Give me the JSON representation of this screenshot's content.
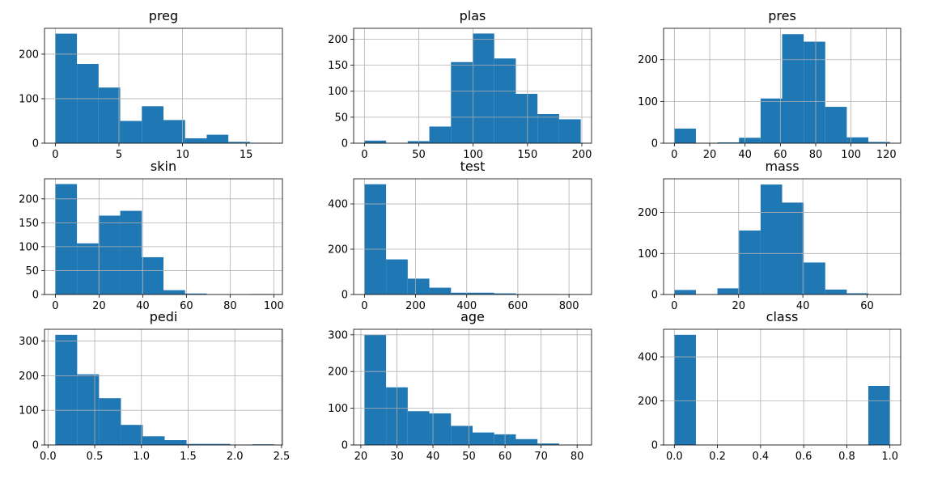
{
  "figure": {
    "facecolor": "#ffffff",
    "bar_color": "#1f77b4",
    "grid_color": "#b0b0b0",
    "grid": true
  },
  "chart_data": [
    {
      "type": "bar",
      "title": "preg",
      "xlim": [
        -0.85,
        17.85
      ],
      "ylim": [
        0,
        258
      ],
      "bin_edges": [
        0,
        1.7,
        3.4,
        5.1,
        6.8,
        8.5,
        10.2,
        11.9,
        13.6,
        15.3,
        17
      ],
      "values": [
        246,
        178,
        125,
        50,
        83,
        52,
        11,
        19,
        3,
        1
      ],
      "xticks": [
        0,
        5,
        10,
        15
      ],
      "xtick_labels": [
        "0",
        "5",
        "10",
        "15"
      ],
      "yticks": [
        0,
        100,
        200
      ],
      "ytick_labels": [
        "0",
        "100",
        "200"
      ]
    },
    {
      "type": "bar",
      "title": "plas",
      "xlim": [
        -9.95,
        208.95
      ],
      "ylim": [
        0,
        221
      ],
      "bin_edges": [
        0,
        19.9,
        39.8,
        59.7,
        79.6,
        99.5,
        119.4,
        139.3,
        159.2,
        179.1,
        199
      ],
      "values": [
        5,
        0,
        4,
        32,
        156,
        211,
        163,
        95,
        56,
        46
      ],
      "xticks": [
        0,
        50,
        100,
        150,
        200
      ],
      "xtick_labels": [
        "0",
        "50",
        "100",
        "150",
        "200"
      ],
      "yticks": [
        0,
        50,
        100,
        150,
        200
      ],
      "ytick_labels": [
        "0",
        "50",
        "100",
        "150",
        "200"
      ]
    },
    {
      "type": "bar",
      "title": "pres",
      "xlim": [
        -6.1,
        128.1
      ],
      "ylim": [
        0,
        275
      ],
      "bin_edges": [
        0,
        12.2,
        24.4,
        36.6,
        48.8,
        61,
        73.2,
        85.4,
        97.6,
        109.8,
        122
      ],
      "values": [
        35,
        1,
        2,
        13,
        107,
        261,
        243,
        87,
        14,
        3
      ],
      "xticks": [
        0,
        20,
        40,
        60,
        80,
        100,
        120
      ],
      "xtick_labels": [
        "0",
        "20",
        "40",
        "60",
        "80",
        "100",
        "120"
      ],
      "yticks": [
        0,
        100,
        200
      ],
      "ytick_labels": [
        "0",
        "100",
        "200"
      ]
    },
    {
      "type": "bar",
      "title": "skin",
      "xlim": [
        -4.95,
        103.95
      ],
      "ylim": [
        0,
        242
      ],
      "bin_edges": [
        0,
        9.9,
        19.8,
        29.7,
        39.6,
        49.5,
        59.4,
        69.3,
        79.2,
        89.1,
        99
      ],
      "values": [
        231,
        107,
        165,
        175,
        78,
        9,
        2,
        0,
        0,
        1
      ],
      "xticks": [
        0,
        20,
        40,
        60,
        80,
        100
      ],
      "xtick_labels": [
        "0",
        "20",
        "40",
        "60",
        "80",
        "100"
      ],
      "yticks": [
        0,
        50,
        100,
        150,
        200
      ],
      "ytick_labels": [
        "0",
        "50",
        "100",
        "150",
        "200"
      ]
    },
    {
      "type": "bar",
      "title": "test",
      "xlim": [
        -42.3,
        888.3
      ],
      "ylim": [
        0,
        511
      ],
      "bin_edges": [
        0,
        84.6,
        169.2,
        253.8,
        338.4,
        423,
        507.6,
        592.2,
        676.8,
        761.4,
        846
      ],
      "values": [
        487,
        155,
        70,
        30,
        8,
        8,
        5,
        2,
        2,
        1
      ],
      "xticks": [
        0,
        200,
        400,
        600,
        800
      ],
      "xtick_labels": [
        "0",
        "200",
        "400",
        "600",
        "800"
      ],
      "yticks": [
        0,
        200,
        400
      ],
      "ytick_labels": [
        "0",
        "200",
        "400"
      ]
    },
    {
      "type": "bar",
      "title": "mass",
      "xlim": [
        -3.355,
        70.455
      ],
      "ylim": [
        0,
        282
      ],
      "bin_edges": [
        0,
        6.71,
        13.42,
        20.13,
        26.84,
        33.55,
        40.26,
        46.97,
        53.68,
        60.39,
        67.1
      ],
      "values": [
        11,
        0,
        15,
        156,
        268,
        224,
        78,
        12,
        3,
        1
      ],
      "xticks": [
        0,
        20,
        40,
        60
      ],
      "xtick_labels": [
        "0",
        "20",
        "40",
        "60"
      ],
      "yticks": [
        0,
        100,
        200
      ],
      "ytick_labels": [
        "0",
        "100",
        "200"
      ]
    },
    {
      "type": "bar",
      "title": "pedi",
      "xlim": [
        -0.0373,
        2.5093
      ],
      "ylim": [
        0,
        334
      ],
      "bin_edges": [
        0.078,
        0.3122,
        0.5464,
        0.7806,
        1.0148,
        1.249,
        1.4832,
        1.7174,
        1.9516,
        2.1858,
        2.42
      ],
      "values": [
        318,
        204,
        135,
        58,
        25,
        14,
        3,
        3,
        1,
        2
      ],
      "xticks": [
        0,
        0.5,
        1,
        1.5,
        2,
        2.5
      ],
      "xtick_labels": [
        "0.0",
        "0.5",
        "1.0",
        "1.5",
        "2.0",
        "2.5"
      ],
      "yticks": [
        0,
        100,
        200,
        300
      ],
      "ytick_labels": [
        "0",
        "100",
        "200",
        "300"
      ]
    },
    {
      "type": "bar",
      "title": "age",
      "xlim": [
        18,
        84
      ],
      "ylim": [
        0,
        315
      ],
      "bin_edges": [
        21,
        27,
        33,
        39,
        45,
        51,
        57,
        63,
        69,
        75,
        81
      ],
      "values": [
        300,
        157,
        92,
        86,
        52,
        34,
        29,
        16,
        4,
        1
      ],
      "xticks": [
        20,
        30,
        40,
        50,
        60,
        70,
        80
      ],
      "xtick_labels": [
        "20",
        "30",
        "40",
        "50",
        "60",
        "70",
        "80"
      ],
      "yticks": [
        0,
        100,
        200,
        300
      ],
      "ytick_labels": [
        "0",
        "100",
        "200",
        "300"
      ]
    },
    {
      "type": "bar",
      "title": "class",
      "xlim": [
        -0.05,
        1.05
      ],
      "ylim": [
        0,
        525
      ],
      "bin_edges": [
        0,
        0.1,
        0.2,
        0.3,
        0.4,
        0.5,
        0.6,
        0.7,
        0.8,
        0.9,
        1
      ],
      "values": [
        500,
        0,
        0,
        0,
        0,
        0,
        0,
        0,
        0,
        268
      ],
      "xticks": [
        0,
        0.2,
        0.4,
        0.6,
        0.8,
        1
      ],
      "xtick_labels": [
        "0.0",
        "0.2",
        "0.4",
        "0.6",
        "0.8",
        "1.0"
      ],
      "yticks": [
        0,
        200,
        400
      ],
      "ytick_labels": [
        "0",
        "200",
        "400"
      ]
    }
  ]
}
